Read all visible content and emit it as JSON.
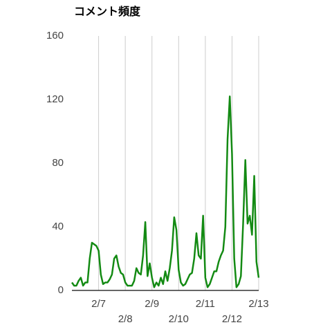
{
  "chart_data": {
    "type": "line",
    "title": "コメント頻度",
    "x": [
      0,
      2,
      4,
      6,
      8,
      10,
      12,
      14,
      16,
      18,
      20,
      22,
      24,
      26,
      28,
      30,
      32,
      34,
      36,
      38,
      40,
      42,
      44,
      46,
      48,
      50,
      52,
      54,
      56,
      58,
      60,
      62,
      64,
      66,
      68,
      70,
      72,
      74,
      76,
      78,
      80,
      82,
      84,
      86,
      88,
      90,
      92,
      94,
      96,
      98,
      100,
      102,
      104,
      106,
      108,
      110,
      112,
      114,
      116,
      118,
      120,
      122,
      124,
      126,
      128,
      130,
      132,
      134,
      136,
      138,
      140,
      142,
      144,
      146,
      148,
      150,
      152,
      154,
      156,
      158,
      160,
      162,
      164,
      166,
      168
    ],
    "series": [
      {
        "name": "コメント頻度",
        "color": "#138a13",
        "values": [
          5,
          3,
          3,
          6,
          8,
          3,
          5,
          5,
          20,
          30,
          29,
          28,
          25,
          10,
          4,
          5,
          5,
          7,
          10,
          20,
          22,
          15,
          11,
          10,
          5,
          3,
          3,
          3,
          6,
          14,
          11,
          10,
          22,
          43,
          9,
          17,
          8,
          2,
          5,
          3,
          8,
          4,
          12,
          6,
          14,
          25,
          46,
          38,
          13,
          5,
          3,
          4,
          7,
          10,
          11,
          20,
          36,
          22,
          20,
          47,
          8,
          2,
          4,
          8,
          12,
          12,
          18,
          22,
          25,
          40,
          95,
          122,
          86,
          20,
          2,
          4,
          9,
          42,
          82,
          42,
          47,
          35,
          72,
          18,
          8
        ]
      }
    ],
    "xlim": [
      0,
      168
    ],
    "xticks": [
      {
        "value": 24,
        "label": "2/7"
      },
      {
        "value": 48,
        "label": "2/8"
      },
      {
        "value": 72,
        "label": "2/9"
      },
      {
        "value": 96,
        "label": "2/10"
      },
      {
        "value": 120,
        "label": "2/11"
      },
      {
        "value": 144,
        "label": "2/12"
      },
      {
        "value": 168,
        "label": "2/13"
      }
    ],
    "ylim": [
      0,
      160
    ],
    "yticks": [
      0,
      40,
      80,
      120,
      160
    ],
    "grid": true
  }
}
